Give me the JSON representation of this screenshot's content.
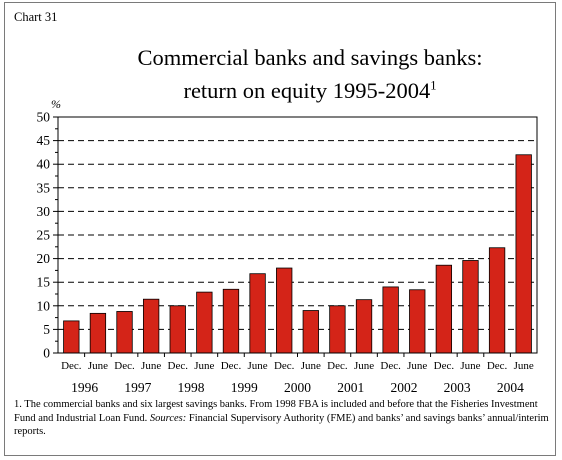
{
  "chart_label": "Chart 31",
  "title_line1": "Commercial banks and savings banks:",
  "title_line2": "return on equity 1995-2004",
  "title_sup": "1",
  "footnote": {
    "text1": "1. The commercial banks and six largest savings banks. From 1998 FBA is included and before that the Fisheries Investment Fund and Industrial Loan Fund. ",
    "sources_label": "Sources:",
    "text2": " Financial Supervisory Authority (FME) and banks’ and savings banks’ annual/interim reports."
  },
  "colors": {
    "bar": "#d42418",
    "axis": "#000000",
    "grid": "#000000"
  },
  "chart_data": {
    "type": "bar",
    "ylabel": "%",
    "ylim": [
      0,
      50
    ],
    "yticks": [
      0,
      5,
      10,
      15,
      20,
      25,
      30,
      35,
      40,
      45,
      50
    ],
    "grid": true,
    "categories": [
      "Dec.",
      "June",
      "Dec.",
      "June",
      "Dec.",
      "June",
      "Dec.",
      "June",
      "Dec.",
      "June",
      "Dec.",
      "June",
      "Dec.",
      "June",
      "Dec.",
      "June",
      "Dec.",
      "June"
    ],
    "year_labels": [
      "1996",
      "1997",
      "1998",
      "1999",
      "2000",
      "2001",
      "2002",
      "2003",
      "2004"
    ],
    "values": [
      6.8,
      8.4,
      8.8,
      11.4,
      10.0,
      12.9,
      13.5,
      16.8,
      18.0,
      9.0,
      10.0,
      11.3,
      14.0,
      13.4,
      18.6,
      19.6,
      22.3,
      42.0
    ]
  }
}
